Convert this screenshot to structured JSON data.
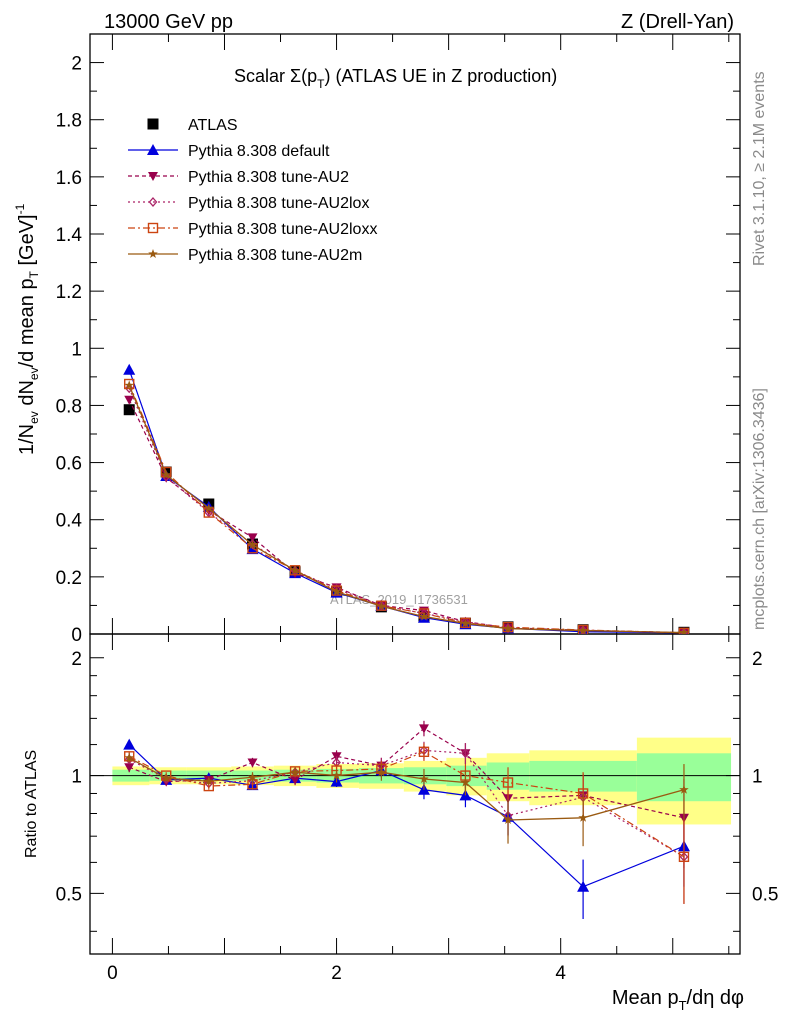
{
  "header": {
    "left": "13000 GeV pp",
    "right": "Z (Drell-Yan)"
  },
  "side": {
    "rivet": "Rivet 3.1.10, ≥ 2.1M events",
    "mcplots": "mcplots.cern.ch [arXiv:1306.3436]"
  },
  "plot_title": {
    "prefix": "Scalar Σ(p",
    "sub": "T",
    "suffix": ") (ATLAS UE in Z production)"
  },
  "watermark": "ATLAS_2019_I1736531",
  "axes": {
    "ylabel_main": "1/N_ev dN_ev/d mean p_T [GeV]^-1",
    "ylabel_ratio": "Ratio to ATLAS",
    "xlabel": "Mean p_T/dη dφ"
  },
  "colors": {
    "ATLAS": "#000000",
    "default": "#0000dd",
    "AU2": "#99004c",
    "AU2lox": "#aa2266",
    "AU2loxx": "#cc4411",
    "AU2m": "#9a5a11",
    "band_inner": "#99ff99",
    "band_outer": "#ffff88"
  },
  "chart_data": {
    "type": "line",
    "x": [
      0.15,
      0.48,
      0.86,
      1.25,
      1.63,
      2.0,
      2.4,
      2.78,
      3.15,
      3.53,
      4.2,
      5.1
    ],
    "x_bin_edges": [
      0.0,
      0.33,
      0.66,
      1.06,
      1.44,
      1.82,
      2.2,
      2.6,
      2.98,
      3.34,
      3.72,
      4.68,
      5.52
    ],
    "xlim": [
      -0.2,
      5.6
    ],
    "xticks": [
      0,
      2,
      4
    ],
    "main": {
      "ylim": [
        0,
        2.1
      ],
      "yticks": [
        0,
        0.2,
        0.4,
        0.6,
        0.8,
        1,
        1.2,
        1.4,
        1.6,
        1.8,
        2
      ],
      "series": [
        {
          "name": "ATLAS",
          "key": "ATLAS",
          "values": [
            0.785,
            0.567,
            0.455,
            0.315,
            0.218,
            0.148,
            0.095,
            0.062,
            0.038,
            0.025,
            0.015,
            0.006
          ]
        },
        {
          "name": "Pythia 8.308 default",
          "key": "default",
          "values": [
            0.925,
            0.553,
            0.445,
            0.297,
            0.213,
            0.145,
            0.098,
            0.057,
            0.034,
            0.02,
            0.008,
            0.004
          ]
        },
        {
          "name": "Pythia 8.308 tune-AU2",
          "key": "AU2",
          "values": [
            0.82,
            0.547,
            0.432,
            0.338,
            0.213,
            0.163,
            0.1,
            0.082,
            0.043,
            0.022,
            0.013,
            0.005
          ]
        },
        {
          "name": "Pythia 8.308 tune-AU2lox",
          "key": "AU2lox",
          "values": [
            0.86,
            0.55,
            0.425,
            0.315,
            0.222,
            0.158,
            0.1,
            0.072,
            0.043,
            0.02,
            0.013,
            0.004
          ]
        },
        {
          "name": "Pythia 8.308 tune-AU2loxx",
          "key": "AU2loxx",
          "values": [
            0.875,
            0.567,
            0.425,
            0.3,
            0.223,
            0.152,
            0.099,
            0.072,
            0.039,
            0.024,
            0.014,
            0.004
          ]
        },
        {
          "name": "Pythia 8.308 tune-AU2m",
          "key": "AU2m",
          "values": [
            0.87,
            0.557,
            0.44,
            0.312,
            0.222,
            0.148,
            0.097,
            0.061,
            0.037,
            0.019,
            0.012,
            0.005
          ]
        }
      ]
    },
    "ratio": {
      "ylim": [
        0.35,
        2.3
      ],
      "log": true,
      "yticks": [
        0.5,
        1,
        2
      ],
      "band_inner": [
        0.035,
        0.03,
        0.03,
        0.03,
        0.035,
        0.04,
        0.045,
        0.05,
        0.06,
        0.08,
        0.09,
        0.14
      ],
      "band_outer": [
        0.055,
        0.05,
        0.05,
        0.055,
        0.06,
        0.07,
        0.075,
        0.09,
        0.11,
        0.14,
        0.16,
        0.25
      ],
      "series": [
        {
          "name": "Pythia 8.308 default",
          "key": "default",
          "values": [
            1.2,
            0.975,
            0.985,
            0.945,
            0.985,
            0.965,
            1.03,
            0.92,
            0.89,
            0.785,
            0.52,
            0.66
          ],
          "errors": [
            0.03,
            0.02,
            0.02,
            0.02,
            0.03,
            0.03,
            0.04,
            0.05,
            0.06,
            0.08,
            0.09,
            0.14
          ]
        },
        {
          "name": "Pythia 8.308 tune-AU2",
          "key": "AU2",
          "values": [
            1.05,
            0.965,
            0.975,
            1.08,
            0.975,
            1.12,
            1.06,
            1.32,
            1.14,
            0.875,
            0.89,
            0.78
          ],
          "errors": [
            0.03,
            0.02,
            0.02,
            0.03,
            0.03,
            0.04,
            0.05,
            0.06,
            0.07,
            0.1,
            0.12,
            0.2
          ]
        },
        {
          "name": "Pythia 8.308 tune-AU2lox",
          "key": "AU2lox",
          "values": [
            1.1,
            0.98,
            0.955,
            0.97,
            1.02,
            1.08,
            1.06,
            1.16,
            1.14,
            0.79,
            0.88,
            0.62
          ],
          "errors": [
            0.03,
            0.02,
            0.02,
            0.03,
            0.03,
            0.04,
            0.05,
            0.06,
            0.07,
            0.09,
            0.12,
            0.15
          ]
        },
        {
          "name": "Pythia 8.308 tune-AU2loxx",
          "key": "AU2loxx",
          "values": [
            1.12,
            1.0,
            0.94,
            0.95,
            1.025,
            1.03,
            1.04,
            1.15,
            1.0,
            0.96,
            0.9,
            0.62
          ],
          "errors": [
            0.03,
            0.02,
            0.02,
            0.03,
            0.03,
            0.04,
            0.05,
            0.06,
            0.07,
            0.09,
            0.12,
            0.15
          ]
        },
        {
          "name": "Pythia 8.308 tune-AU2m",
          "key": "AU2m",
          "values": [
            1.11,
            0.985,
            0.967,
            0.99,
            1.02,
            1.0,
            1.02,
            0.98,
            0.96,
            0.77,
            0.78,
            0.92
          ],
          "errors": [
            0.03,
            0.02,
            0.02,
            0.03,
            0.03,
            0.04,
            0.05,
            0.06,
            0.07,
            0.1,
            0.12,
            0.15
          ]
        }
      ]
    }
  }
}
